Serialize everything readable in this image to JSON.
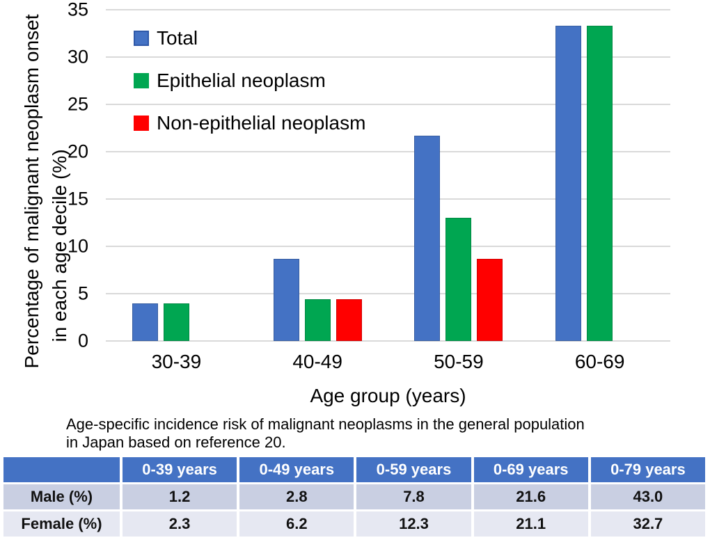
{
  "chart_data": {
    "type": "bar",
    "categories": [
      "30-39",
      "40-49",
      "50-59",
      "60-69"
    ],
    "series": [
      {
        "name": "Total",
        "color": "#4472C4",
        "legend_border": "#2E58A8",
        "values": [
          4.0,
          8.7,
          21.7,
          33.3
        ]
      },
      {
        "name": "Epithelial neoplasm",
        "color": "#00A651",
        "legend_border": "#00A651",
        "values": [
          4.0,
          4.4,
          13.0,
          33.3
        ]
      },
      {
        "name": "Non-epithelial neoplasm",
        "color": "#FF0000",
        "legend_border": "#FF0000",
        "values": [
          0,
          4.4,
          8.7,
          0
        ]
      }
    ],
    "title": "",
    "xlabel": "Age group (years)",
    "ylabel_line1": "Percentage of malignant neoplasm onset",
    "ylabel_line2": "in each age decile (%)",
    "ylim": [
      0,
      35
    ],
    "yticks": [
      0,
      5,
      10,
      15,
      20,
      25,
      30,
      35
    ],
    "grid": true,
    "gridline_color": "#D9D9D9",
    "legend_position": "top-left-inside"
  },
  "caption": {
    "line1": "Age-specific incidence risk of malignant neoplasms in the general population",
    "line2": "in Japan based on reference 20."
  },
  "table": {
    "header": [
      "",
      "0-39 years",
      "0-49 years",
      "0-59 years",
      "0-69 years",
      "0-79 years"
    ],
    "rows": [
      {
        "label": "Male (%)",
        "values": [
          "1.2",
          "2.8",
          "7.8",
          "21.6",
          "43.0"
        ]
      },
      {
        "label": "Female (%)",
        "values": [
          "2.3",
          "6.2",
          "12.3",
          "21.1",
          "32.7"
        ]
      }
    ],
    "colors": {
      "header_bg": "#4472C4",
      "header_text": "#FFFFFF",
      "row_male_bg": "#C9CFE2",
      "row_female_bg": "#E6E8F2",
      "body_text": "#111111"
    }
  }
}
